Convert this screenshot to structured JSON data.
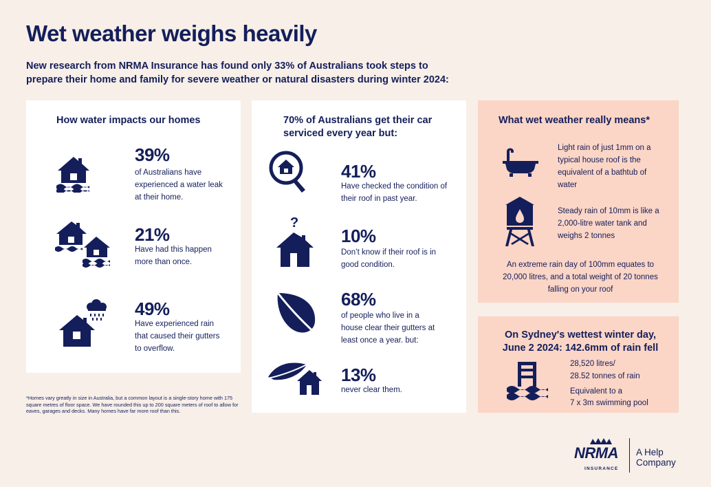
{
  "title": "Wet weather weighs heavily",
  "intro": "New research from NRMA Insurance has found only 33% of Australians took steps to prepare their home and family for severe weather or natural disasters during winter 2024:",
  "card1": {
    "heading": "How water impacts our homes",
    "stats": [
      {
        "value": "39%",
        "text": "of Australians have experienced a water leak at their home.",
        "icon": "flooded-house-icon"
      },
      {
        "value": "21%",
        "text": "Have had this happen more than once.",
        "icon": "two-flooded-houses-icon"
      },
      {
        "value": "49%",
        "text": "Have experienced rain that caused their gutters to overflow.",
        "icon": "house-rain-cloud-icon"
      }
    ]
  },
  "card2": {
    "heading": "70% of Australians get their car serviced every year but:",
    "stats": [
      {
        "value": "41%",
        "text": "Have checked the condition of their roof in past year.",
        "icon": "magnifier-house-icon"
      },
      {
        "value": "10%",
        "text": "Don’t know if their roof is in good condition.",
        "icon": "house-question-icon"
      },
      {
        "value": "68%",
        "text": "of people who live in a house clear their gutters at least once a year. but:",
        "icon": "leaf-icon"
      },
      {
        "value": "13%",
        "text": "never clear them.",
        "icon": "leaf-house-icon"
      }
    ]
  },
  "card3": {
    "heading": "What wet weather really means*",
    "items": [
      {
        "text": "Light rain of just 1mm on a typical house roof is the equivalent of a bathtub of water",
        "icon": "bathtub-icon"
      },
      {
        "text": "Steady rain of 10mm is like a 2,000-litre water tank and weighs 2 tonnes",
        "icon": "water-tank-icon"
      }
    ],
    "extreme": "An extreme rain day of 100mm equates to 20,000 litres, and a total weight of 20 tonnes falling on your roof"
  },
  "card4": {
    "heading": "On Sydney's wettest winter day, June 2 2024: 142.6mm of rain fell",
    "line1": "28,520 litres/",
    "line2": "28.52 tonnes of rain",
    "line3": "Equivalent to a",
    "line4": "7 x 3m swimming pool",
    "icon": "pool-ladder-icon"
  },
  "footnote": "*Homes vary greatly in size in Australia, but a common layout is a single-story home with 175 square metres of floor space. We have rounded this up to 200 square meters of roof to allow for eaves, garages and decks. Many homes have far more roof than this.",
  "logo": {
    "brand": "NRMA",
    "sub": "INSURANCE",
    "help1": "A Help",
    "help2": "Company"
  },
  "colors": {
    "background": "#f7efe8",
    "navy": "#141e5a",
    "pink": "#fbd5c6",
    "white": "#ffffff"
  }
}
